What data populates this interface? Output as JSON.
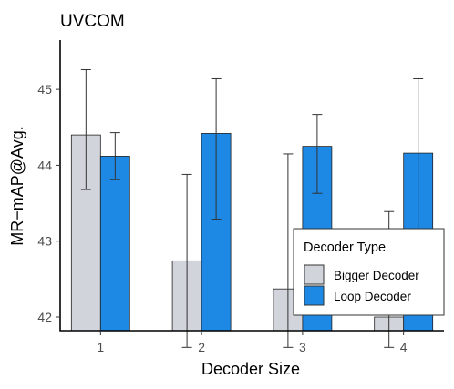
{
  "chart_data": {
    "type": "bar",
    "title": "UVCOM",
    "xlabel": "Decoder Size",
    "ylabel": "MR−mAP@Avg.",
    "categories": [
      "1",
      "2",
      "3",
      "4"
    ],
    "y_ticks": [
      "42",
      "43",
      "44",
      "45"
    ],
    "ylim": [
      41.82,
      45.65
    ],
    "grid": false,
    "legend": {
      "title": "Decoder Type",
      "placement": "bottom-right"
    },
    "series": [
      {
        "name": "Bigger Decoder",
        "color": "#d1d5db",
        "values": [
          44.4,
          42.74,
          42.37,
          42.0
        ],
        "error_low": [
          43.68,
          41.6,
          41.6,
          41.6
        ],
        "error_high": [
          45.26,
          43.88,
          44.15,
          43.39
        ]
      },
      {
        "name": "Loop Decoder",
        "color": "#1e88e5",
        "values": [
          44.12,
          44.42,
          44.25,
          44.16
        ],
        "error_low": [
          43.81,
          43.29,
          43.63,
          42.5
        ],
        "error_high": [
          44.43,
          45.14,
          44.67,
          45.14
        ]
      }
    ]
  }
}
